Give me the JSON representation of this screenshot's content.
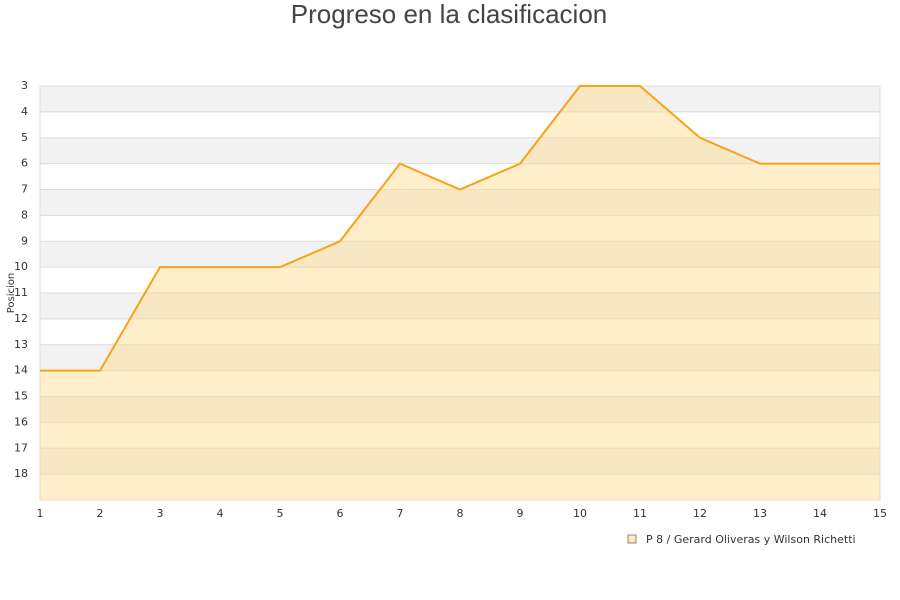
{
  "chart_data": {
    "type": "area",
    "title": "Progreso en la clasificacion",
    "y_label": "Posicion",
    "x": [
      1,
      2,
      3,
      4,
      5,
      6,
      7,
      8,
      9,
      10,
      11,
      12,
      13,
      14,
      15
    ],
    "series": [
      {
        "name": "P 8 / Gerard Oliveras y Wilson Richetti",
        "color": "#f5a31a",
        "values": [
          14,
          14,
          10,
          10,
          10,
          9,
          6,
          7,
          6,
          3,
          3,
          5,
          6,
          6,
          6
        ]
      }
    ],
    "xlim": [
      1,
      15
    ],
    "xticks": [
      1,
      2,
      3,
      4,
      5,
      6,
      7,
      8,
      9,
      10,
      11,
      12,
      13,
      14,
      15
    ],
    "ylim": [
      3,
      19
    ],
    "yticks": [
      3,
      4,
      5,
      6,
      7,
      8,
      9,
      10,
      11,
      12,
      13,
      14,
      15,
      16,
      17,
      18
    ],
    "y_inverted": true,
    "grid": true,
    "legend": "bottom-right"
  }
}
